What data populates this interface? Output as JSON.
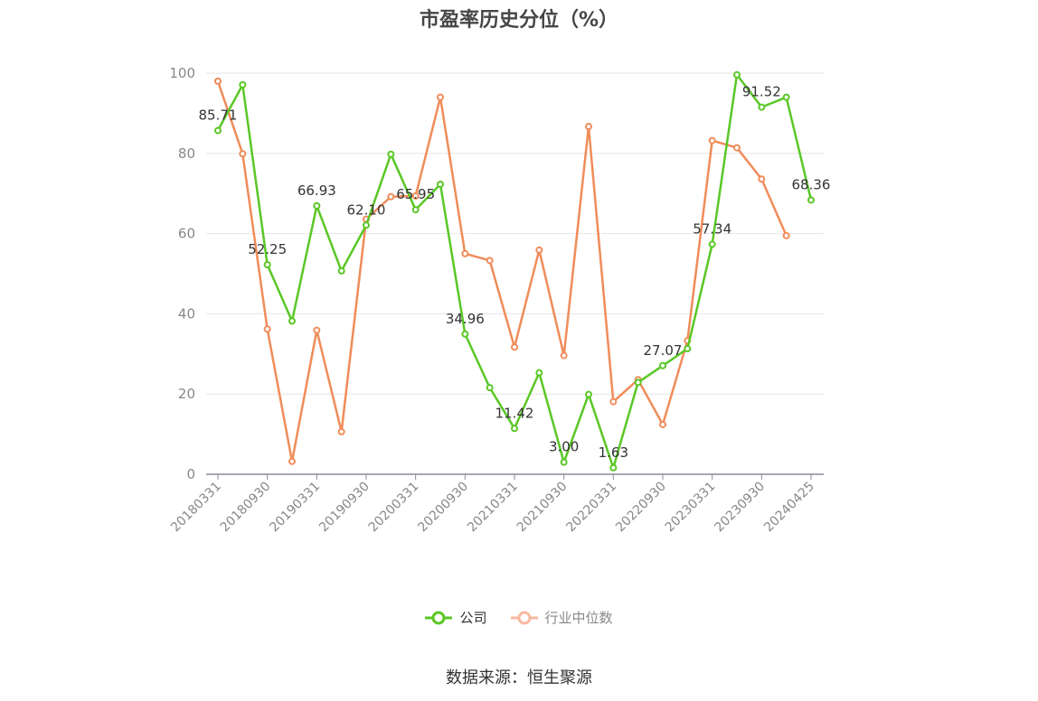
{
  "title": "市盈率历史分位（%）",
  "source": "数据来源：恒生聚源",
  "legend": {
    "company": "公司",
    "industry": "行业中位数"
  },
  "colors": {
    "company": "#5ac726",
    "industry": "#f08c5a",
    "industry_legend": "#f8b9a0",
    "grid": "#e6e6e6",
    "axis": "#8a8a99",
    "tick_text": "#888888",
    "label_text": "#333333"
  },
  "chart_data": {
    "type": "line",
    "title": "市盈率历史分位（%）",
    "ylim": [
      0,
      100
    ],
    "yticks": [
      0,
      20,
      40,
      60,
      80,
      100
    ],
    "x_tick_labels": [
      "20180331",
      "20180930",
      "20190331",
      "20190930",
      "20200331",
      "20200930",
      "20210331",
      "20210930",
      "20220331",
      "20220930",
      "20230331",
      "20230930",
      "20240425"
    ],
    "x_tick_indices": [
      0,
      2,
      4,
      6,
      8,
      10,
      12,
      14,
      16,
      18,
      20,
      22,
      24
    ],
    "n_points": 25,
    "grid": true,
    "legend_position": "bottom",
    "series": [
      {
        "name": "公司",
        "values": [
          85.71,
          97.1,
          52.25,
          38.2,
          66.93,
          50.7,
          62.1,
          79.8,
          65.95,
          72.3,
          34.96,
          21.6,
          11.42,
          25.3,
          3.0,
          19.9,
          1.63,
          22.9,
          27.07,
          31.3,
          57.34,
          99.6,
          91.52,
          94.0,
          68.36
        ],
        "labels": {
          "0": "85.71",
          "2": "52.25",
          "4": "66.93",
          "6": "62.10",
          "8": "65.95",
          "10": "34.96",
          "12": "11.42",
          "14": "3.00",
          "16": "1.63",
          "18": "27.07",
          "20": "57.34",
          "22": "91.52",
          "24": "68.36"
        }
      },
      {
        "name": "行业中位数",
        "values": [
          98.0,
          79.9,
          36.2,
          3.2,
          35.9,
          10.6,
          63.6,
          69.2,
          69.4,
          94.0,
          55.0,
          53.3,
          31.7,
          55.9,
          29.6,
          86.7,
          18.1,
          23.6,
          12.4,
          33.3,
          83.2,
          81.4,
          73.6,
          59.5,
          null
        ]
      }
    ]
  }
}
